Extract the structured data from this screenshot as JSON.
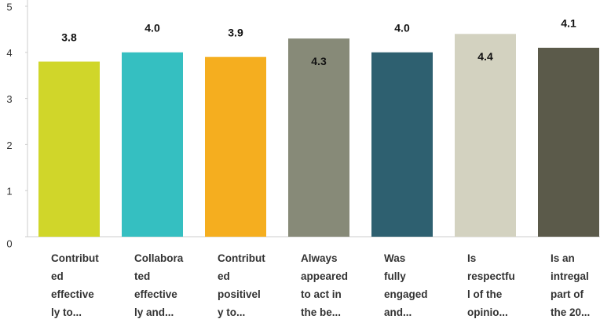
{
  "chart_data": {
    "type": "bar",
    "categories": [
      "Contribut\ned\neffective\nly to...",
      "Collabora\nted\neffective\nly and...",
      "Contribut\ned\npositivel\ny to...",
      "Always\nappeared\nto act in\nthe be...",
      "Was\nfully\nengaged\nand...",
      "Is\nrespectfu\nl of the\nopinio...",
      "Is an\nintregal\npart of\nthe 20..."
    ],
    "values": [
      3.8,
      4.0,
      3.9,
      4.3,
      4.0,
      4.4,
      4.1
    ],
    "value_labels": [
      "3.8",
      "4.0",
      "3.9",
      "4.3",
      "4.0",
      "4.4",
      "4.1"
    ],
    "colors": [
      "#d0d62a",
      "#35bfc1",
      "#f5ae1f",
      "#878a78",
      "#2e6070",
      "#d3d2c0",
      "#5b5a4a"
    ],
    "ylim": [
      0,
      5
    ],
    "yticks": [
      0,
      1,
      2,
      3,
      4,
      5
    ]
  }
}
